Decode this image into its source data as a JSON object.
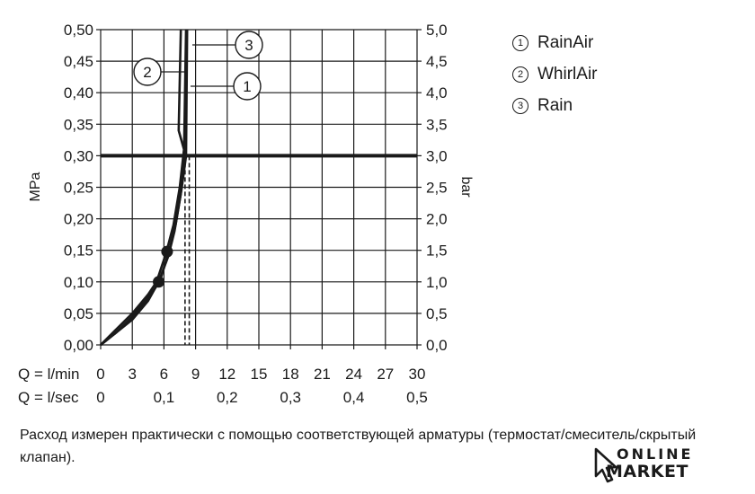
{
  "chart_data": {
    "type": "line",
    "ylabel_left": "MPa",
    "ylabel_right": "bar",
    "ylim": [
      0,
      0.5
    ],
    "yticks_left": [
      "0,00",
      "0,05",
      "0,10",
      "0,15",
      "0,20",
      "0,25",
      "0,30",
      "0,35",
      "0,40",
      "0,45",
      "0,50"
    ],
    "yticks_right": [
      "0,0",
      "0,5",
      "1,0",
      "1,5",
      "2,0",
      "2,5",
      "3,0",
      "3,5",
      "4,0",
      "4,5",
      "5,0"
    ],
    "xlim": [
      0,
      30
    ],
    "x_axis_rows": [
      {
        "label": "Q = l/min",
        "ticks": [
          {
            "x": 0,
            "t": "0"
          },
          {
            "x": 3,
            "t": "3"
          },
          {
            "x": 6,
            "t": "6"
          },
          {
            "x": 9,
            "t": "9"
          },
          {
            "x": 12,
            "t": "12"
          },
          {
            "x": 15,
            "t": "15"
          },
          {
            "x": 18,
            "t": "18"
          },
          {
            "x": 21,
            "t": "21"
          },
          {
            "x": 24,
            "t": "24"
          },
          {
            "x": 27,
            "t": "27"
          },
          {
            "x": 30,
            "t": "30"
          }
        ]
      },
      {
        "label": "Q = l/sec",
        "ticks": [
          {
            "x": 0,
            "t": "0"
          },
          {
            "x": 6,
            "t": "0,1"
          },
          {
            "x": 12,
            "t": "0,2"
          },
          {
            "x": 18,
            "t": "0,3"
          },
          {
            "x": 24,
            "t": "0,4"
          },
          {
            "x": 30,
            "t": "0,5"
          }
        ]
      }
    ],
    "reference_line": {
      "y": 0.3
    },
    "series": [
      {
        "name": "RainAir",
        "tag": "1",
        "x": [
          0,
          1.5,
          3,
          4.5,
          5.5,
          6.4,
          7.0,
          7.6,
          7.9,
          8.1
        ],
        "y": [
          0,
          0.02,
          0.04,
          0.07,
          0.1,
          0.14,
          0.18,
          0.24,
          0.3,
          0.5
        ]
      },
      {
        "name": "WhirlAir",
        "tag": "2",
        "x": [
          0,
          1.5,
          3,
          4.5,
          5.3,
          6.2,
          6.9,
          7.5,
          7.9,
          7.4,
          7.6
        ],
        "y": [
          0,
          0.025,
          0.05,
          0.08,
          0.1,
          0.145,
          0.19,
          0.25,
          0.31,
          0.34,
          0.5
        ]
      },
      {
        "name": "Rain",
        "tag": "3",
        "x": [
          0,
          1.5,
          3,
          4.5,
          5.6,
          6.5,
          7.1,
          7.7,
          8.1,
          8.2
        ],
        "y": [
          0,
          0.02,
          0.045,
          0.075,
          0.1,
          0.15,
          0.19,
          0.25,
          0.3,
          0.5
        ]
      }
    ],
    "markers": [
      {
        "x": 5.5,
        "y": 0.1
      },
      {
        "x": 6.3,
        "y": 0.148
      }
    ],
    "dashed_verticals": [
      8.0,
      8.4
    ],
    "callouts": [
      "1",
      "2",
      "3"
    ]
  },
  "legend": [
    {
      "num": "1",
      "label": "RainAir"
    },
    {
      "num": "2",
      "label": "WhirlAir"
    },
    {
      "num": "3",
      "label": "Rain"
    }
  ],
  "caption": "Расход измерен практически с помощью соответствующей арматуры (термостат/смеситель/скрытый клапан).",
  "watermark": {
    "line1": "ONLINE",
    "line2": "MARKET"
  }
}
